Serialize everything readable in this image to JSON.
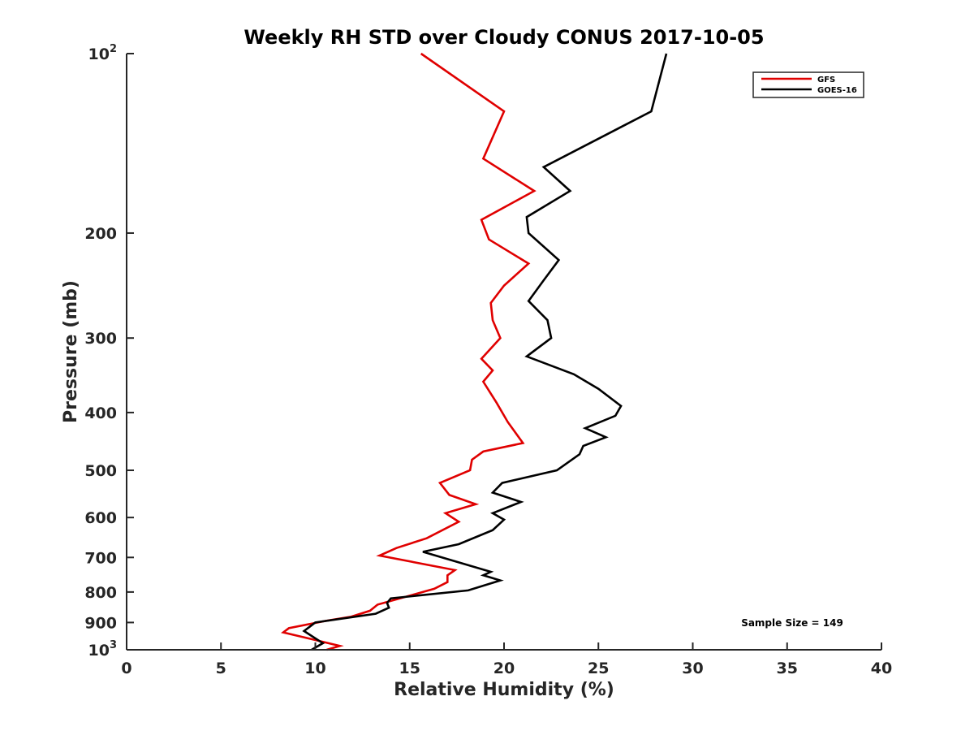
{
  "chart_data": {
    "type": "line",
    "title": "Weekly RH STD over Cloudy CONUS 2017-10-05",
    "xlabel": "Relative Humidity (%)",
    "ylabel": "Pressure (mb)",
    "xlim": [
      0,
      40
    ],
    "ylim": [
      100,
      1000
    ],
    "y_scale": "log",
    "y_reversed": true,
    "x_ticks": [
      "0",
      "5",
      "10",
      "15",
      "20",
      "25",
      "30",
      "35",
      "40"
    ],
    "y_ticks": [
      {
        "value": 100,
        "base": "10",
        "exp": "2"
      },
      {
        "value": 200,
        "label": "200"
      },
      {
        "value": 300,
        "label": "300"
      },
      {
        "value": 400,
        "label": "400"
      },
      {
        "value": 500,
        "label": "500"
      },
      {
        "value": 600,
        "label": "600"
      },
      {
        "value": 700,
        "label": "700"
      },
      {
        "value": 800,
        "label": "800"
      },
      {
        "value": 900,
        "label": "900"
      },
      {
        "value": 1000,
        "base": "10",
        "exp": "3"
      }
    ],
    "grid": false,
    "legend_position": "top-right",
    "annotation": "Sample Size = 149",
    "series": [
      {
        "name": "GFS",
        "color": "#e00000",
        "points": [
          [
            15.6,
            100
          ],
          [
            20.0,
            125
          ],
          [
            18.9,
            150
          ],
          [
            21.6,
            170
          ],
          [
            18.8,
            190
          ],
          [
            19.2,
            205
          ],
          [
            21.3,
            225
          ],
          [
            20.0,
            245
          ],
          [
            19.3,
            262
          ],
          [
            19.4,
            280
          ],
          [
            19.8,
            300
          ],
          [
            18.8,
            325
          ],
          [
            19.4,
            340
          ],
          [
            18.9,
            355
          ],
          [
            19.6,
            385
          ],
          [
            20.2,
            415
          ],
          [
            21.0,
            450
          ],
          [
            18.9,
            465
          ],
          [
            18.3,
            480
          ],
          [
            18.2,
            500
          ],
          [
            16.6,
            525
          ],
          [
            17.1,
            550
          ],
          [
            18.5,
            570
          ],
          [
            16.9,
            590
          ],
          [
            17.6,
            610
          ],
          [
            15.9,
            650
          ],
          [
            14.3,
            675
          ],
          [
            13.4,
            695
          ],
          [
            17.4,
            735
          ],
          [
            17.0,
            750
          ],
          [
            17.0,
            770
          ],
          [
            16.3,
            790
          ],
          [
            13.3,
            840
          ],
          [
            12.9,
            860
          ],
          [
            11.9,
            880
          ],
          [
            10.5,
            895
          ],
          [
            8.6,
            920
          ],
          [
            8.3,
            935
          ],
          [
            11.3,
            985
          ],
          [
            10.6,
            1000
          ]
        ]
      },
      {
        "name": "GOES-16",
        "color": "#000000",
        "points": [
          [
            28.6,
            100
          ],
          [
            27.8,
            125
          ],
          [
            22.1,
            155
          ],
          [
            23.5,
            170
          ],
          [
            21.2,
            188
          ],
          [
            21.3,
            200
          ],
          [
            22.9,
            222
          ],
          [
            22.1,
            240
          ],
          [
            21.3,
            260
          ],
          [
            22.3,
            280
          ],
          [
            22.5,
            300
          ],
          [
            21.2,
            322
          ],
          [
            23.7,
            345
          ],
          [
            25.0,
            365
          ],
          [
            26.2,
            390
          ],
          [
            25.9,
            405
          ],
          [
            24.3,
            425
          ],
          [
            25.4,
            440
          ],
          [
            24.2,
            455
          ],
          [
            24.0,
            470
          ],
          [
            22.8,
            500
          ],
          [
            19.9,
            525
          ],
          [
            19.4,
            545
          ],
          [
            20.9,
            565
          ],
          [
            19.4,
            590
          ],
          [
            20.0,
            605
          ],
          [
            19.4,
            630
          ],
          [
            17.6,
            665
          ],
          [
            15.7,
            685
          ],
          [
            19.3,
            740
          ],
          [
            18.9,
            750
          ],
          [
            19.8,
            765
          ],
          [
            18.1,
            795
          ],
          [
            14.0,
            820
          ],
          [
            13.8,
            835
          ],
          [
            13.9,
            850
          ],
          [
            13.2,
            870
          ],
          [
            10.0,
            900
          ],
          [
            9.4,
            930
          ],
          [
            10.4,
            975
          ],
          [
            9.8,
            1000
          ]
        ]
      }
    ]
  }
}
